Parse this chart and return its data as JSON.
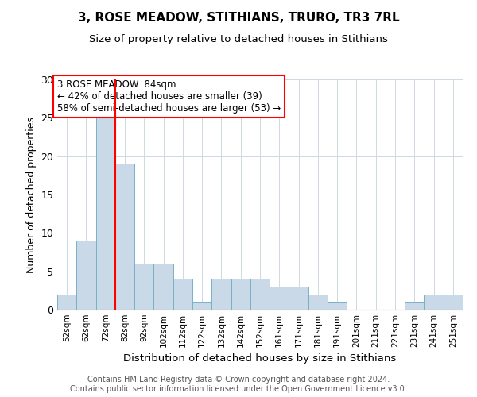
{
  "title1": "3, ROSE MEADOW, STITHIANS, TRURO, TR3 7RL",
  "title2": "Size of property relative to detached houses in Stithians",
  "xlabel": "Distribution of detached houses by size in Stithians",
  "ylabel": "Number of detached properties",
  "categories": [
    "52sqm",
    "62sqm",
    "72sqm",
    "82sqm",
    "92sqm",
    "102sqm",
    "112sqm",
    "122sqm",
    "132sqm",
    "142sqm",
    "152sqm",
    "161sqm",
    "171sqm",
    "181sqm",
    "191sqm",
    "201sqm",
    "211sqm",
    "221sqm",
    "231sqm",
    "241sqm",
    "251sqm"
  ],
  "values": [
    2,
    9,
    25,
    19,
    6,
    6,
    4,
    1,
    4,
    4,
    4,
    3,
    3,
    2,
    1,
    0,
    0,
    0,
    1,
    2,
    2
  ],
  "bar_color": "#c9d9e8",
  "bar_edge_color": "#7aafc8",
  "ref_line_index": 2.5,
  "reference_line_color": "red",
  "annotation_text": "3 ROSE MEADOW: 84sqm\n← 42% of detached houses are smaller (39)\n58% of semi-detached houses are larger (53) →",
  "annotation_box_color": "white",
  "annotation_box_edge_color": "red",
  "ylim": [
    0,
    30
  ],
  "yticks": [
    0,
    5,
    10,
    15,
    20,
    25,
    30
  ],
  "footnote": "Contains HM Land Registry data © Crown copyright and database right 2024.\nContains public sector information licensed under the Open Government Licence v3.0.",
  "bg_color": "white",
  "grid_color": "#d0d8e0"
}
